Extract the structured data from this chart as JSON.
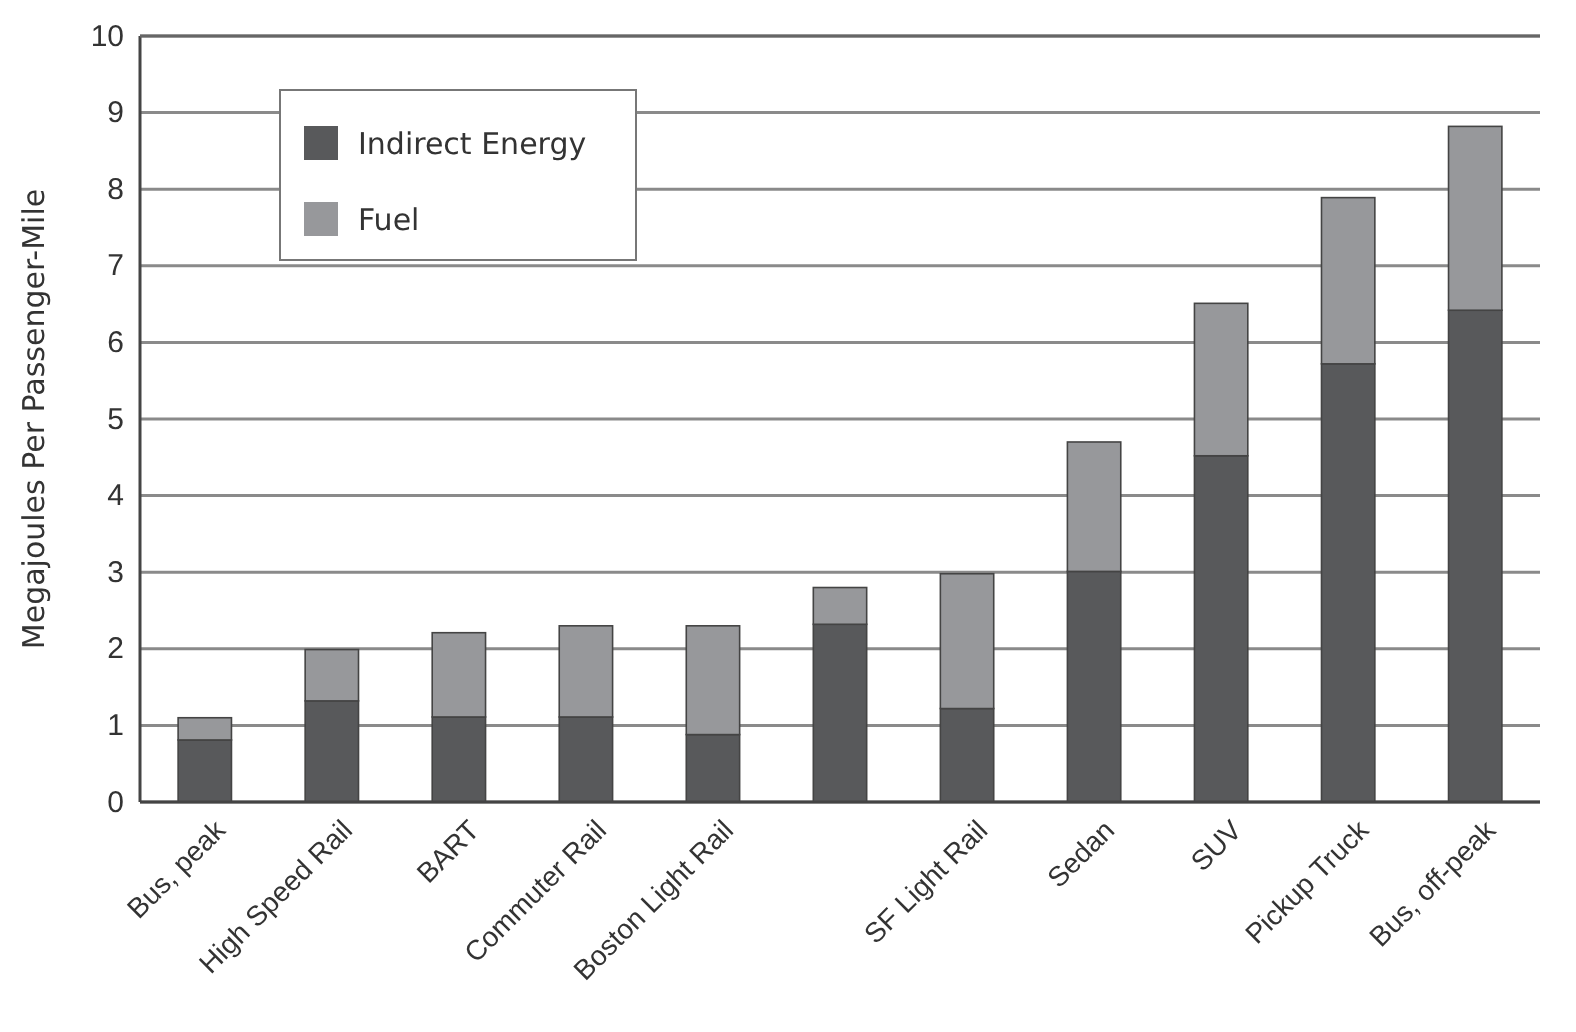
{
  "chart_data": {
    "type": "bar",
    "ylabel": "Megajoules Per Passenger-Mile",
    "stacked": true,
    "categories": [
      "Bus, peak",
      "High Speed Rail",
      "BART",
      "Commuter Rail",
      "Boston Light Rail",
      null,
      "SF Light Rail",
      "Sedan",
      "SUV",
      "Pickup Truck",
      "Bus, off-peak"
    ],
    "series": [
      {
        "name": "Indirect Energy",
        "color": "#58595b",
        "values": [
          0.81,
          1.32,
          1.11,
          1.11,
          0.88,
          2.32,
          1.22,
          3.01,
          4.52,
          5.72,
          6.42
        ]
      },
      {
        "name": "Fuel",
        "color": "#97989b",
        "values": [
          0.29,
          0.67,
          1.1,
          1.19,
          1.42,
          0.48,
          1.76,
          1.69,
          1.99,
          2.17,
          2.4
        ]
      }
    ],
    "ylim": [
      0,
      10
    ],
    "yticks": [
      0,
      1,
      2,
      3,
      4,
      5,
      6,
      7,
      8,
      9,
      10
    ],
    "grid": "y",
    "legend": "top left"
  }
}
